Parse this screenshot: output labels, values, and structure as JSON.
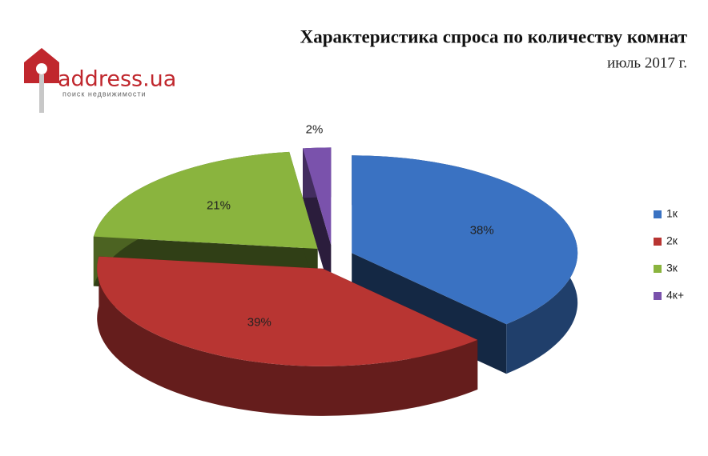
{
  "logo": {
    "name": "address.ua",
    "tagline": "поиск недвижимости"
  },
  "chart_data": {
    "type": "pie",
    "title": "Характеристика спроса по количеству комнат",
    "subtitle": "июль 2017 г.",
    "categories": [
      "1к",
      "2к",
      "3к",
      "4к+"
    ],
    "values": [
      38,
      39,
      21,
      2
    ],
    "value_labels": [
      "38%",
      "39%",
      "21%",
      "2%"
    ],
    "colors": [
      "#3a72c2",
      "#b83532",
      "#8ab43e",
      "#7a52ac"
    ],
    "legend": "right"
  }
}
